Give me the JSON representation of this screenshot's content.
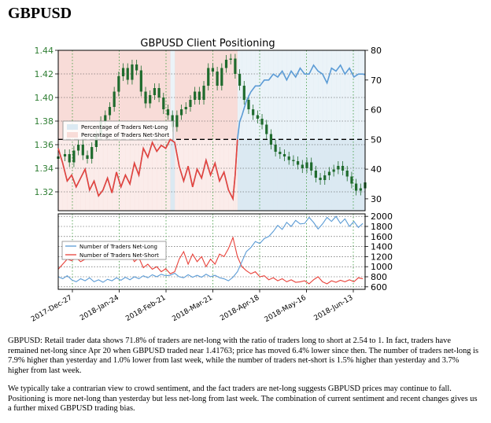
{
  "page": {
    "heading": "GBPUSD",
    "paragraphs": [
      "GBPUSD: Retail trader data shows 71.8% of traders are net-long with the ratio of traders long to short at 2.54 to 1. In fact, traders have remained net-long since Apr 20 when GBPUSD traded near 1.41763; price has moved 6.4% lower since then. The number of traders net-long is 7.9% higher than yesterday and 1.0% lower from last week, while the number of traders net-short is 1.5% higher than yesterday and 3.7% higher from last week.",
      "We typically take a contrarian view to crowd sentiment, and the fact traders are net-long suggests GBPUSD prices may continue to fall. Positioning is more net-long than yesterday but less net-long from last week. The combination of current sentiment and recent changes gives us a further mixed GBPUSD trading bias."
    ]
  },
  "colors": {
    "long": "#5b9bd5",
    "short": "#e8423a",
    "candle": "#1f6b2d",
    "long_fill": "#dbe9f2",
    "short_fill": "#f8dcd8",
    "grid": "#3a9a3a",
    "price_tick": "#2e7d32"
  },
  "chart_data": [
    {
      "type": "line",
      "title": "GBPUSD Client Positioning",
      "price_series": "GBPUSD",
      "y_left": {
        "ticks": [
          "1.44",
          "1.42",
          "1.40",
          "1.38",
          "1.36",
          "1.34",
          "1.32"
        ],
        "ylim": [
          1.304,
          1.44
        ]
      },
      "y_right": {
        "ticks": [
          "80",
          "70",
          "60",
          "50",
          "40",
          "30"
        ],
        "ylim": [
          26,
          80
        ]
      },
      "reference_line": 50,
      "legend": {
        "position": "center-left",
        "entries": [
          "Percentage of Traders Net-Long",
          "Percentage of Traders Net-Short"
        ]
      },
      "price_close": [
        [
          0,
          1.35
        ],
        [
          3,
          1.352
        ],
        [
          5,
          1.345
        ],
        [
          7,
          1.355
        ],
        [
          9,
          1.36
        ],
        [
          11,
          1.351
        ],
        [
          13,
          1.348
        ],
        [
          15,
          1.358
        ],
        [
          17,
          1.368
        ],
        [
          19,
          1.38
        ],
        [
          21,
          1.385
        ],
        [
          23,
          1.392
        ],
        [
          25,
          1.405
        ],
        [
          27,
          1.418
        ],
        [
          29,
          1.425
        ],
        [
          31,
          1.415
        ],
        [
          33,
          1.428
        ],
        [
          35,
          1.423
        ],
        [
          37,
          1.405
        ],
        [
          39,
          1.395
        ],
        [
          41,
          1.402
        ],
        [
          43,
          1.408
        ],
        [
          45,
          1.4
        ],
        [
          47,
          1.39
        ],
        [
          49,
          1.385
        ],
        [
          51,
          1.375
        ],
        [
          53,
          1.385
        ],
        [
          55,
          1.39
        ],
        [
          57,
          1.392
        ],
        [
          59,
          1.398
        ],
        [
          61,
          1.405
        ],
        [
          63,
          1.398
        ],
        [
          65,
          1.41
        ],
        [
          67,
          1.425
        ],
        [
          69,
          1.422
        ],
        [
          71,
          1.41
        ],
        [
          73,
          1.425
        ],
        [
          75,
          1.432
        ],
        [
          77,
          1.433
        ],
        [
          79,
          1.42
        ],
        [
          81,
          1.41
        ],
        [
          83,
          1.398
        ],
        [
          85,
          1.39
        ],
        [
          87,
          1.385
        ],
        [
          89,
          1.382
        ],
        [
          91,
          1.377
        ],
        [
          93,
          1.369
        ],
        [
          95,
          1.36
        ],
        [
          97,
          1.354
        ],
        [
          99,
          1.352
        ],
        [
          101,
          1.35
        ],
        [
          103,
          1.347
        ],
        [
          105,
          1.346
        ],
        [
          107,
          1.343
        ],
        [
          109,
          1.34
        ],
        [
          111,
          1.345
        ],
        [
          113,
          1.338
        ],
        [
          115,
          1.332
        ],
        [
          117,
          1.33
        ],
        [
          119,
          1.334
        ],
        [
          121,
          1.337
        ],
        [
          123,
          1.339
        ],
        [
          125,
          1.342
        ],
        [
          127,
          1.338
        ],
        [
          129,
          1.333
        ],
        [
          131,
          1.327
        ],
        [
          133,
          1.321
        ],
        [
          135,
          1.323
        ],
        [
          137,
          1.328
        ]
      ],
      "pct_net_long": [
        [
          0,
          47
        ],
        [
          2,
          42
        ],
        [
          4,
          36
        ],
        [
          6,
          38
        ],
        [
          8,
          34
        ],
        [
          10,
          37
        ],
        [
          12,
          40
        ],
        [
          14,
          33
        ],
        [
          16,
          36
        ],
        [
          18,
          31
        ],
        [
          20,
          33
        ],
        [
          22,
          37
        ],
        [
          24,
          32
        ],
        [
          26,
          39
        ],
        [
          28,
          34
        ],
        [
          30,
          38
        ],
        [
          32,
          35
        ],
        [
          34,
          42
        ],
        [
          36,
          38
        ],
        [
          38,
          47
        ],
        [
          40,
          44
        ],
        [
          42,
          49
        ],
        [
          44,
          46
        ],
        [
          46,
          48
        ],
        [
          48,
          47
        ],
        [
          50,
          50
        ],
        [
          52,
          49
        ],
        [
          54,
          41
        ],
        [
          56,
          36
        ],
        [
          58,
          41
        ],
        [
          60,
          34
        ],
        [
          62,
          40
        ],
        [
          64,
          37
        ],
        [
          66,
          43
        ],
        [
          68,
          38
        ],
        [
          70,
          42
        ],
        [
          72,
          36
        ],
        [
          74,
          39
        ],
        [
          76,
          33
        ],
        [
          78,
          30
        ],
        [
          79,
          38
        ],
        [
          80,
          50
        ],
        [
          81,
          56
        ],
        [
          82,
          58
        ],
        [
          84,
          63
        ],
        [
          86,
          66
        ],
        [
          88,
          68
        ],
        [
          90,
          68
        ],
        [
          92,
          70
        ],
        [
          94,
          70
        ],
        [
          96,
          72
        ],
        [
          98,
          71
        ],
        [
          100,
          73
        ],
        [
          102,
          70
        ],
        [
          104,
          73
        ],
        [
          106,
          71
        ],
        [
          108,
          74
        ],
        [
          110,
          72
        ],
        [
          112,
          72
        ],
        [
          114,
          75
        ],
        [
          116,
          73
        ],
        [
          118,
          72
        ],
        [
          120,
          69
        ],
        [
          122,
          74
        ],
        [
          124,
          73
        ],
        [
          126,
          75
        ],
        [
          128,
          72
        ],
        [
          130,
          74
        ],
        [
          132,
          71
        ],
        [
          134,
          72
        ],
        [
          136,
          72
        ],
        [
          137,
          71.8
        ]
      ]
    },
    {
      "type": "line",
      "y_right": {
        "ticks": [
          "2000",
          "1800",
          "1600",
          "1400",
          "1200",
          "1000",
          "800",
          "600"
        ],
        "ylim": [
          550,
          2050
        ]
      },
      "legend": {
        "position": "center-left",
        "entries": [
          "Number of Traders Net-Long",
          "Number of Traders Net-Short"
        ]
      },
      "x_ticks": [
        "2017-Dec-27",
        "2018-Jan-24",
        "2018-Feb-21",
        "2018-Mar-21",
        "2018-Apr-18",
        "2018-May-16",
        "2018-Jun-13"
      ],
      "series": [
        {
          "name": "Number of Traders Net-Long",
          "values": [
            [
              0,
              800
            ],
            [
              2,
              760
            ],
            [
              4,
              820
            ],
            [
              6,
              740
            ],
            [
              8,
              700
            ],
            [
              10,
              760
            ],
            [
              12,
              720
            ],
            [
              14,
              780
            ],
            [
              16,
              700
            ],
            [
              18,
              740
            ],
            [
              20,
              690
            ],
            [
              22,
              750
            ],
            [
              24,
              720
            ],
            [
              26,
              780
            ],
            [
              28,
              730
            ],
            [
              30,
              790
            ],
            [
              32,
              740
            ],
            [
              34,
              800
            ],
            [
              36,
              760
            ],
            [
              38,
              820
            ],
            [
              40,
              780
            ],
            [
              42,
              840
            ],
            [
              44,
              800
            ],
            [
              46,
              850
            ],
            [
              48,
              820
            ],
            [
              50,
              830
            ],
            [
              52,
              870
            ],
            [
              54,
              800
            ],
            [
              56,
              780
            ],
            [
              58,
              840
            ],
            [
              60,
              790
            ],
            [
              62,
              830
            ],
            [
              64,
              790
            ],
            [
              66,
              850
            ],
            [
              68,
              800
            ],
            [
              70,
              830
            ],
            [
              72,
              780
            ],
            [
              74,
              760
            ],
            [
              76,
              720
            ],
            [
              78,
              790
            ],
            [
              80,
              900
            ],
            [
              82,
              1100
            ],
            [
              84,
              1300
            ],
            [
              86,
              1380
            ],
            [
              88,
              1500
            ],
            [
              90,
              1460
            ],
            [
              92,
              1560
            ],
            [
              94,
              1600
            ],
            [
              96,
              1700
            ],
            [
              98,
              1820
            ],
            [
              100,
              1740
            ],
            [
              102,
              1880
            ],
            [
              104,
              1800
            ],
            [
              106,
              1920
            ],
            [
              108,
              1850
            ],
            [
              110,
              1860
            ],
            [
              112,
              1980
            ],
            [
              114,
              1880
            ],
            [
              116,
              1750
            ],
            [
              118,
              1850
            ],
            [
              120,
              1980
            ],
            [
              122,
              1900
            ],
            [
              124,
              2000
            ],
            [
              126,
              1860
            ],
            [
              128,
              1950
            ],
            [
              130,
              1800
            ],
            [
              132,
              1900
            ],
            [
              134,
              1780
            ],
            [
              136,
              1860
            ]
          ]
        },
        {
          "name": "Number of Traders Net-Short",
          "values": [
            [
              0,
              950
            ],
            [
              2,
              1050
            ],
            [
              4,
              1150
            ],
            [
              6,
              1120
            ],
            [
              8,
              1180
            ],
            [
              10,
              1100
            ],
            [
              12,
              1150
            ],
            [
              14,
              1200
            ],
            [
              16,
              1150
            ],
            [
              18,
              1250
            ],
            [
              20,
              1300
            ],
            [
              22,
              1200
            ],
            [
              24,
              1320
            ],
            [
              26,
              1150
            ],
            [
              28,
              1300
            ],
            [
              30,
              1180
            ],
            [
              32,
              1260
            ],
            [
              34,
              1100
            ],
            [
              36,
              1180
            ],
            [
              38,
              980
            ],
            [
              40,
              1050
            ],
            [
              42,
              950
            ],
            [
              44,
              1000
            ],
            [
              46,
              900
            ],
            [
              48,
              960
            ],
            [
              50,
              860
            ],
            [
              52,
              900
            ],
            [
              54,
              1150
            ],
            [
              56,
              1300
            ],
            [
              58,
              1050
            ],
            [
              60,
              1250
            ],
            [
              62,
              1100
            ],
            [
              64,
              1200
            ],
            [
              66,
              1000
            ],
            [
              68,
              1150
            ],
            [
              70,
              1050
            ],
            [
              72,
              1250
            ],
            [
              74,
              1200
            ],
            [
              76,
              1360
            ],
            [
              78,
              1580
            ],
            [
              80,
              1200
            ],
            [
              82,
              1000
            ],
            [
              84,
              920
            ],
            [
              86,
              860
            ],
            [
              88,
              900
            ],
            [
              90,
              800
            ],
            [
              92,
              820
            ],
            [
              94,
              740
            ],
            [
              96,
              780
            ],
            [
              98,
              720
            ],
            [
              100,
              760
            ],
            [
              102,
              700
            ],
            [
              104,
              740
            ],
            [
              106,
              690
            ],
            [
              108,
              700
            ],
            [
              110,
              720
            ],
            [
              112,
              660
            ],
            [
              114,
              740
            ],
            [
              116,
              800
            ],
            [
              118,
              700
            ],
            [
              120,
              660
            ],
            [
              122,
              720
            ],
            [
              124,
              690
            ],
            [
              126,
              730
            ],
            [
              128,
              700
            ],
            [
              130,
              740
            ],
            [
              132,
              700
            ],
            [
              134,
              780
            ],
            [
              136,
              760
            ]
          ]
        }
      ]
    }
  ]
}
